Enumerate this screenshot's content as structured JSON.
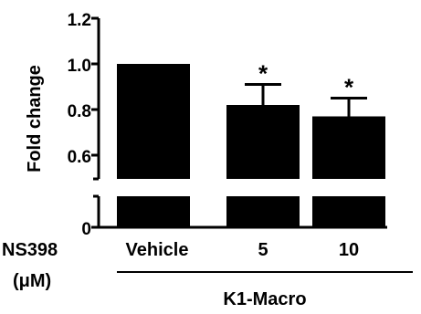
{
  "chart_data": {
    "type": "bar",
    "title": "",
    "ylabel": "Fold change",
    "xlabel": "K1-Macro",
    "treatment_label": "NS398",
    "treatment_unit": "(μM)",
    "categories": [
      "Vehicle",
      "5",
      "10"
    ],
    "values": [
      1.0,
      0.82,
      0.77
    ],
    "errors": [
      0.0,
      0.09,
      0.08
    ],
    "significance": [
      "",
      "*",
      "*"
    ],
    "yticks": [
      "0",
      "0.6",
      "0.8",
      "1.0",
      "1.2"
    ],
    "ylim": [
      0,
      1.2
    ],
    "axis_break": [
      0.5,
      0.55
    ],
    "bar_color": "#000000",
    "grid": false,
    "legend": "none"
  }
}
